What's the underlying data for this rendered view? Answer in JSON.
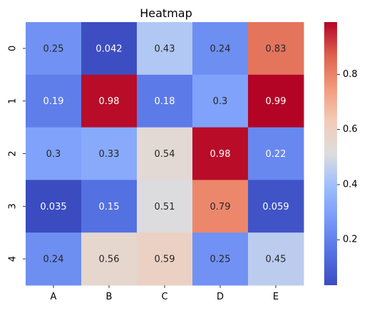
{
  "chart_data": {
    "type": "heatmap",
    "title": "Heatmap",
    "xlabel": "",
    "ylabel": "",
    "x_categories": [
      "A",
      "B",
      "C",
      "D",
      "E"
    ],
    "y_categories": [
      "0",
      "1",
      "2",
      "3",
      "4"
    ],
    "values": [
      [
        0.25,
        0.042,
        0.43,
        0.24,
        0.83
      ],
      [
        0.19,
        0.98,
        0.18,
        0.3,
        0.99
      ],
      [
        0.3,
        0.33,
        0.54,
        0.98,
        0.22
      ],
      [
        0.035,
        0.15,
        0.51,
        0.79,
        0.059
      ],
      [
        0.24,
        0.56,
        0.59,
        0.25,
        0.45
      ]
    ],
    "value_labels": [
      [
        "0.25",
        "0.042",
        "0.43",
        "0.24",
        "0.83"
      ],
      [
        "0.19",
        "0.98",
        "0.18",
        "0.3",
        "0.99"
      ],
      [
        "0.3",
        "0.33",
        "0.54",
        "0.98",
        "0.22"
      ],
      [
        "0.035",
        "0.15",
        "0.51",
        "0.79",
        "0.059"
      ],
      [
        "0.24",
        "0.56",
        "0.59",
        "0.25",
        "0.45"
      ]
    ],
    "colormap": "coolwarm",
    "colorbar": {
      "range": [
        0.035,
        0.99
      ],
      "ticks": [
        0.2,
        0.4,
        0.6,
        0.8
      ],
      "tick_labels": [
        "0.2",
        "0.4",
        "0.6",
        "0.8"
      ]
    },
    "annotated": true,
    "grid": false
  }
}
